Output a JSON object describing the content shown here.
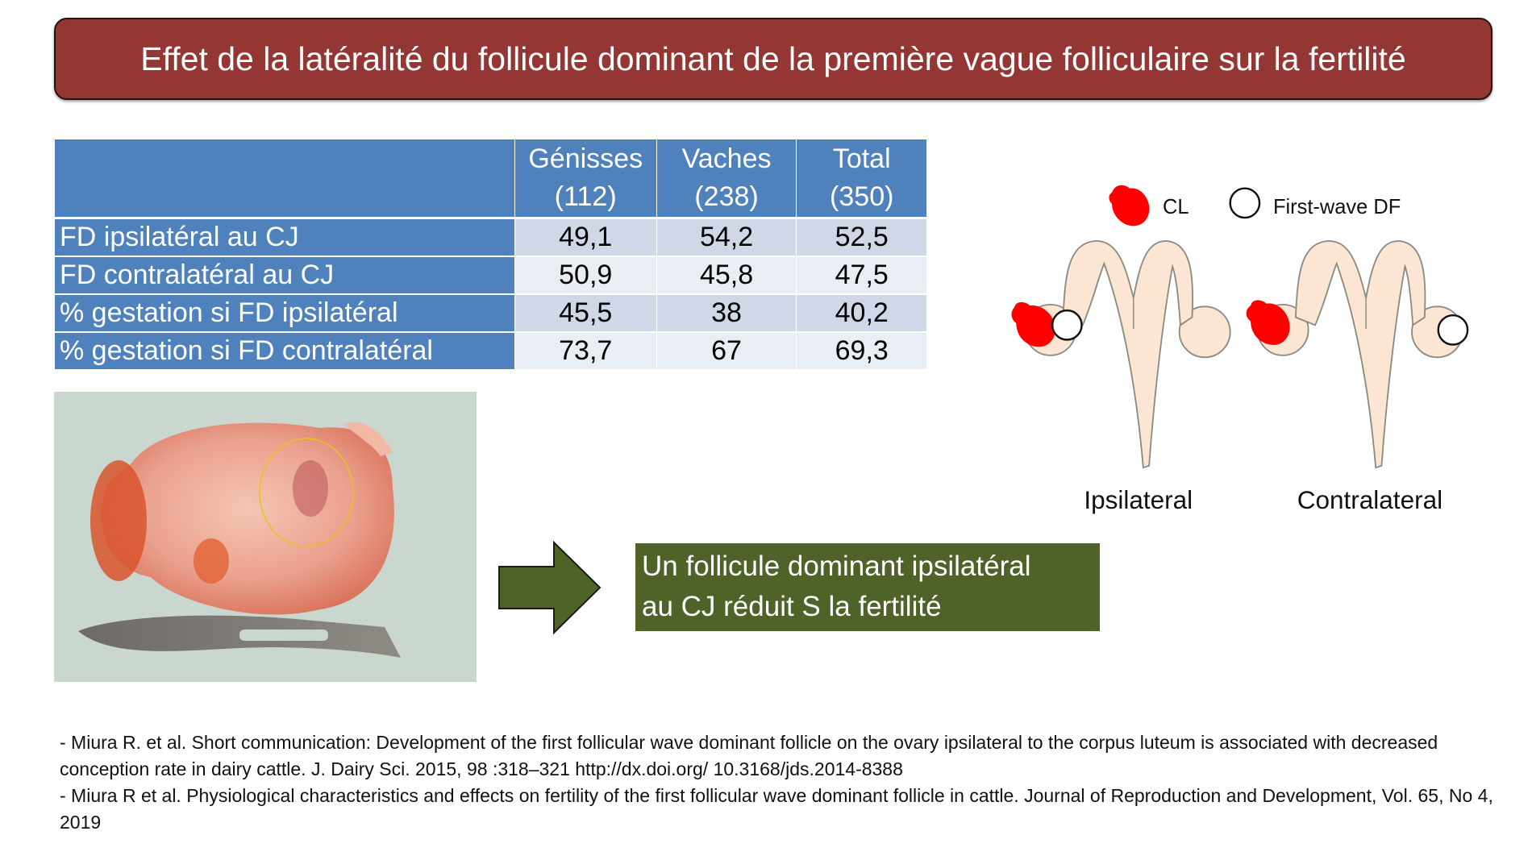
{
  "title": "Effet de la latéralité du follicule dominant de la première vague folliculaire sur la fertilité",
  "table": {
    "headers": [
      {
        "label": "Génisses",
        "n": "(112)"
      },
      {
        "label": "Vaches",
        "n": "(238)"
      },
      {
        "label": "Total",
        "n": "(350)"
      }
    ],
    "rows": [
      {
        "label": "FD ipsilatéral au CJ",
        "values": [
          "49,1",
          "54,2",
          "52,5"
        ]
      },
      {
        "label": "FD contralatéral au CJ",
        "values": [
          "50,9",
          "45,8",
          "47,5"
        ]
      },
      {
        "label": "% gestation si FD ipsilatéral",
        "values": [
          "45,5",
          "38",
          "40,2"
        ]
      },
      {
        "label": "% gestation si FD contralatéral",
        "values": [
          "73,7",
          "67",
          "69,3"
        ]
      }
    ]
  },
  "conclusion": {
    "line1": "Un follicule dominant ipsilatéral",
    "line2": "au CJ réduit S la fertilité"
  },
  "diagram": {
    "legend_cl": "CL",
    "legend_df": "First-wave DF",
    "label_left": "Ipsilateral",
    "label_right": "Contralateral"
  },
  "references": [
    "- Miura R.  et al. Short communication: Development of the first follicular wave dominant follicle on the ovary ipsilateral to the corpus luteum is associated with decreased conception rate in dairy cattle. J. Dairy Sci. 2015, 98 :318–321 http://dx.doi.org/ 10.3168/jds.2014-8388",
    "- Miura R et al. Physiological characteristics and effects on fertility of the first follicular wave dominant follicle in cattle. Journal of Reproduction and Development, Vol. 65, No 4, 2019"
  ],
  "colors": {
    "title_bg": "#943634",
    "table_header": "#4f81bd",
    "conclusion_bg": "#4f6228",
    "cl_red": "#ff0000",
    "uterus": "#fbe5d3"
  }
}
